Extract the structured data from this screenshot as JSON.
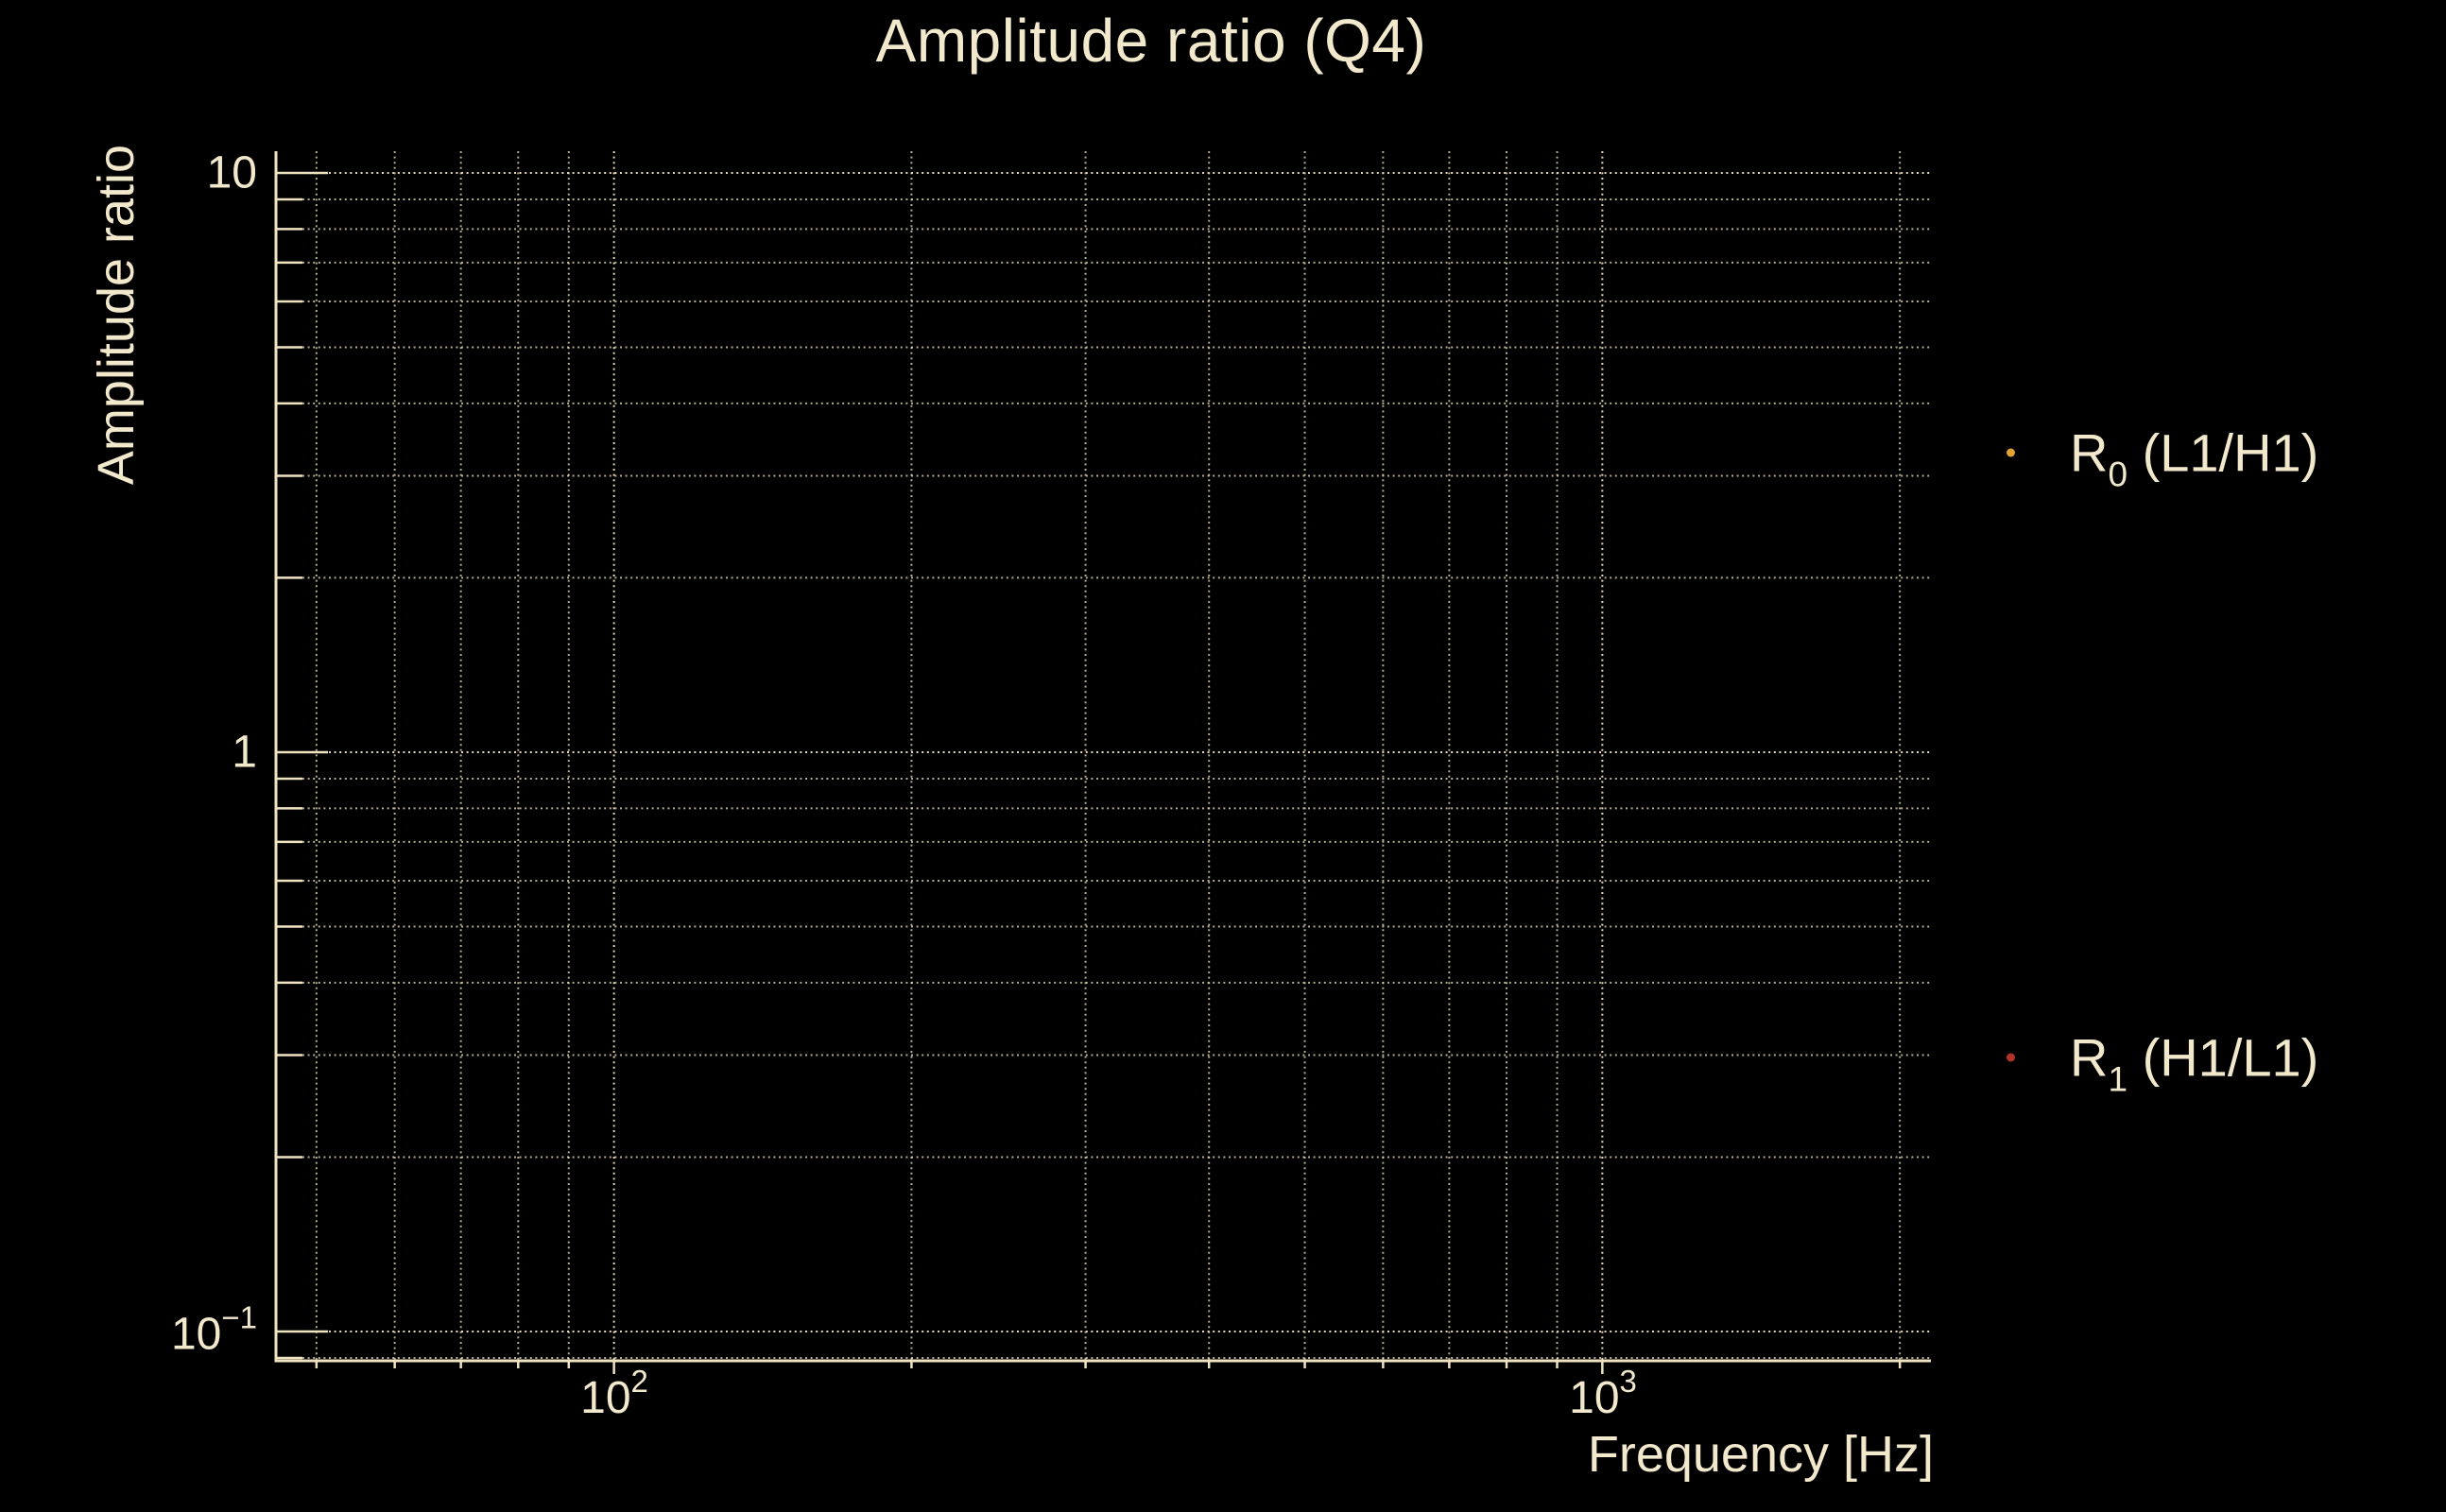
{
  "colors": {
    "background": "#000000",
    "foreground": "#f2e8cc",
    "grid": "#efe3c2",
    "marker_r0": "#dfa431",
    "marker_r1": "#b23229"
  },
  "title": "Amplitude ratio (Q4)",
  "axes": {
    "x": {
      "label": "Frequency [Hz]",
      "scale": "log",
      "major_ticks": [
        {
          "value": 100,
          "base": "10",
          "exp": "2"
        },
        {
          "value": 1000,
          "base": "10",
          "exp": "3"
        }
      ]
    },
    "y": {
      "label": "Amplitude ratio",
      "scale": "log",
      "major_ticks": [
        {
          "value": 10,
          "base": "10",
          "exp": ""
        },
        {
          "value": 1,
          "base": "1",
          "exp": ""
        },
        {
          "value": 0.1,
          "base": "10",
          "exp": "−1"
        }
      ]
    }
  },
  "legend": {
    "items": [
      {
        "name": "R",
        "sub": "0",
        "suffix": " (L1/H1)",
        "marker_color": "#dfa431"
      },
      {
        "name": "R",
        "sub": "1",
        "suffix": " (H1/L1)",
        "marker_color": "#b23229"
      }
    ]
  },
  "chart_data": {
    "type": "scatter",
    "title": "Amplitude ratio (Q4)",
    "xlabel": "Frequency [Hz]",
    "ylabel": "Amplitude ratio",
    "xscale": "log",
    "yscale": "log",
    "xlim": [
      45.5,
      2150
    ],
    "ylim": [
      0.089,
      10.9
    ],
    "grid": {
      "on": true,
      "which": "both",
      "linestyle": "dotted"
    },
    "legend_position": "outside-right",
    "series": [
      {
        "name": "R0 (L1/H1)",
        "color": "#dfa431",
        "marker": "dot",
        "points": []
      },
      {
        "name": "R1 (H1/L1)",
        "color": "#b23229",
        "marker": "dot",
        "points": []
      }
    ],
    "note": "no data points visible inside the axes"
  }
}
